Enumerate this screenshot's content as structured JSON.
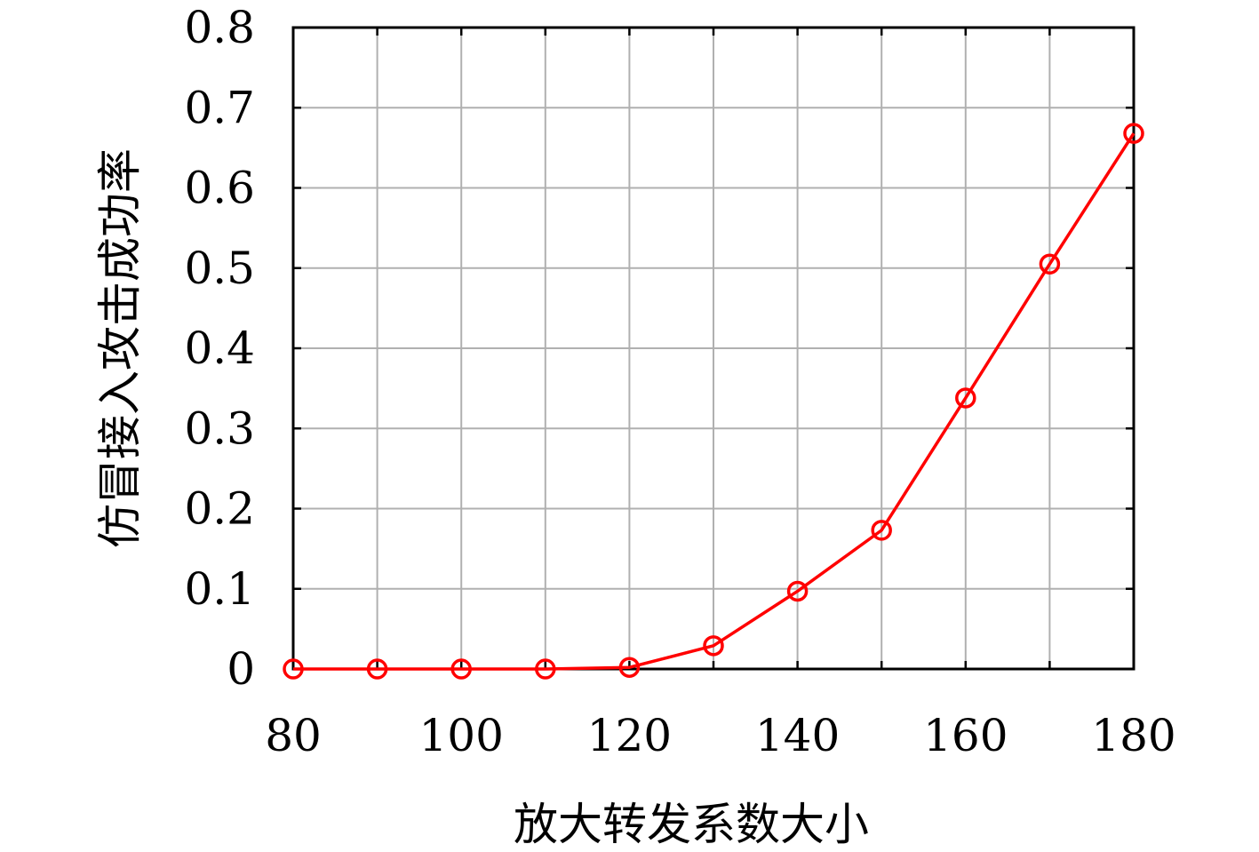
{
  "chart_data": {
    "type": "line",
    "xlabel": "放大转发系数大小",
    "ylabel": "仿冒接入攻击成功率",
    "xlim": [
      80,
      180
    ],
    "ylim": [
      0,
      0.8
    ],
    "x_ticks": [
      "80",
      "100",
      "120",
      "140",
      "160",
      "180"
    ],
    "x_tick_values": [
      80,
      100,
      120,
      140,
      160,
      180
    ],
    "y_ticks": [
      "0",
      "0.1",
      "0.2",
      "0.3",
      "0.4",
      "0.5",
      "0.6",
      "0.7",
      "0.8"
    ],
    "y_tick_values": [
      0,
      0.1,
      0.2,
      0.3,
      0.4,
      0.5,
      0.6,
      0.7,
      0.8
    ],
    "grid": true,
    "series": [
      {
        "color": "#ff0000",
        "marker": "circle",
        "x": [
          80,
          90,
          100,
          110,
          120,
          130,
          140,
          150,
          160,
          170,
          180
        ],
        "y": [
          0,
          0,
          0,
          0,
          0.002,
          0.029,
          0.097,
          0.173,
          0.338,
          0.505,
          0.668
        ]
      }
    ]
  }
}
